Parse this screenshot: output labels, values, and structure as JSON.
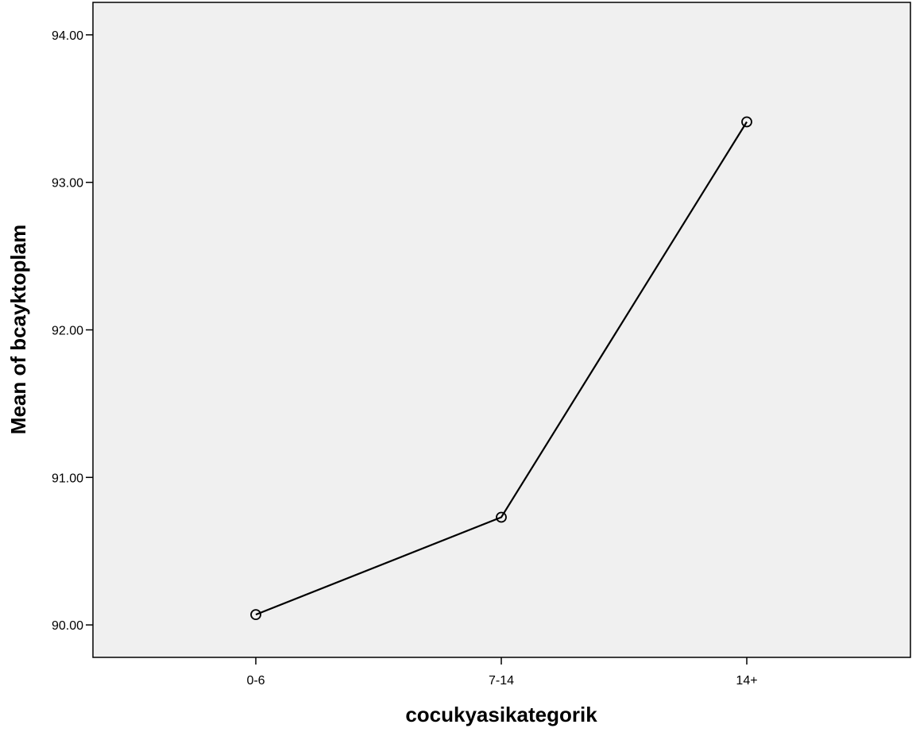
{
  "chart_data": {
    "type": "line",
    "title": "",
    "xlabel": "cocukyasikategorik",
    "ylabel": "Mean of bcayktoplam",
    "categories": [
      "0-6",
      "7-14",
      "14+"
    ],
    "series": [
      {
        "values": [
          90.07,
          90.73,
          93.41
        ]
      }
    ],
    "ylim": [
      89.78,
      94.22
    ],
    "yticks": [
      90.0,
      91.0,
      92.0,
      93.0,
      94.0
    ],
    "ytick_labels": [
      "90.00",
      "91.00",
      "92.00",
      "93.00",
      "94.00"
    ],
    "grid": false,
    "marker": "open-circle",
    "colors": {
      "plot_background": "#f0f0f0",
      "line": "#000000"
    }
  }
}
